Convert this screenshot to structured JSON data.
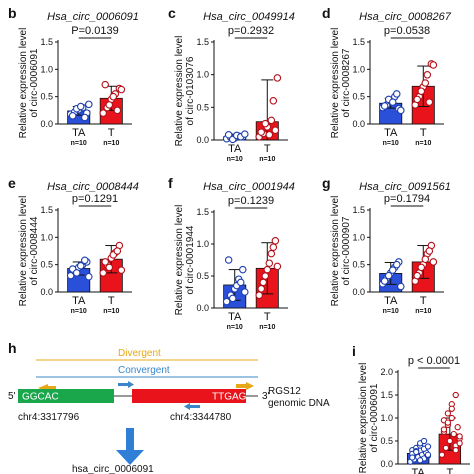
{
  "colors": {
    "ta": "#2a4fd8",
    "t": "#e8131b",
    "divergent": "#e6a817",
    "convergent": "#3a86c8",
    "primer_div": "#e6a817",
    "primer_conv": "#3a86c8",
    "exon_left": "#1aa64b",
    "exon_right": "#e8131b",
    "arrow": "#2f7fd6",
    "dot_ta": "#1d3fb0",
    "dot_t": "#b5101a"
  },
  "panel_h": {
    "label": "h",
    "divergent": "Divergent",
    "convergent": "Convergent",
    "left_seq": "GGCAC",
    "right_seq": "TTGAG",
    "five_prime": "5'",
    "three_prime": "3'",
    "gene_line1": "RGS12",
    "gene_line2": "genomic DNA",
    "coord_left": "chr4:3317796",
    "coord_right": "chr4:3344780",
    "circ_name": "hsa_circ_0006091"
  },
  "chart_data": [
    {
      "panel": "b",
      "type": "bar",
      "title": "Hsa_circ_0006091",
      "ylabel": [
        "Relative expression level",
        "of circ-0006091"
      ],
      "categories": [
        "TA",
        "T"
      ],
      "n_labels": [
        "n=10",
        "n=10"
      ],
      "pvalue": "P=0.0139",
      "ylim": [
        0,
        1.5
      ],
      "yticks": [
        "0.0",
        "0.5",
        "1.0",
        "1.5"
      ],
      "values": [
        0.24,
        0.47
      ],
      "errors": [
        0.08,
        0.22
      ],
      "points": [
        [
          0.18,
          0.22,
          0.26,
          0.3,
          0.2,
          0.15,
          0.28,
          0.32,
          0.12,
          0.36
        ],
        [
          0.2,
          0.3,
          0.45,
          0.55,
          0.65,
          0.72,
          0.35,
          0.5,
          0.25,
          0.63
        ]
      ]
    },
    {
      "panel": "c",
      "type": "bar",
      "title": "Hsa_circ_0049914",
      "ylabel": [
        "Relative expression level",
        "of circ-0103076"
      ],
      "categories": [
        "TA",
        "T"
      ],
      "n_labels": [
        "n=10",
        "n=10"
      ],
      "pvalue": "p=0.2932",
      "ylim": [
        0,
        1.5
      ],
      "yticks": [
        "0.0",
        "0.5",
        "1.0",
        "1.5"
      ],
      "values": [
        0.05,
        0.28
      ],
      "errors": [
        0.04,
        0.64
      ],
      "points": [
        [
          0.02,
          0.04,
          0.03,
          0.06,
          0.05,
          0.08,
          0.01,
          0.07,
          0.05,
          0.09
        ],
        [
          0.05,
          0.1,
          0.2,
          0.3,
          0.15,
          0.12,
          0.25,
          0.08,
          0.6,
          0.95
        ]
      ]
    },
    {
      "panel": "d",
      "type": "bar",
      "title": "Hsa_circ_0008267",
      "ylabel": [
        "Relative expression level",
        "of circ-0008267"
      ],
      "categories": [
        "TA",
        "T"
      ],
      "n_labels": [
        "n=10",
        "n=10"
      ],
      "pvalue": "p=0.0538",
      "ylim": [
        0,
        1.5
      ],
      "yticks": [
        "0.0",
        "0.5",
        "1.0",
        "1.5"
      ],
      "values": [
        0.38,
        0.69
      ],
      "errors": [
        0.09,
        0.37
      ],
      "points": [
        [
          0.3,
          0.35,
          0.42,
          0.5,
          0.28,
          0.33,
          0.45,
          0.4,
          0.55,
          0.25
        ],
        [
          0.35,
          0.5,
          0.68,
          0.9,
          1.1,
          0.45,
          0.6,
          0.75,
          0.4,
          1.08
        ]
      ]
    },
    {
      "panel": "e",
      "type": "bar",
      "title": "Hsa_circ_0008444",
      "ylabel": [
        "Relative expression level",
        "of circ-0008444"
      ],
      "categories": [
        "TA",
        "T"
      ],
      "n_labels": [
        "n=10",
        "n=10"
      ],
      "pvalue": "p=0.1291",
      "ylim": [
        0,
        1.5
      ],
      "yticks": [
        "0.0",
        "0.5",
        "1.0",
        "1.5"
      ],
      "values": [
        0.43,
        0.6
      ],
      "errors": [
        0.12,
        0.25
      ],
      "points": [
        [
          0.3,
          0.38,
          0.45,
          0.5,
          0.55,
          0.42,
          0.35,
          0.48,
          0.58,
          0.28
        ],
        [
          0.35,
          0.5,
          0.62,
          0.72,
          0.85,
          0.55,
          0.45,
          0.68,
          0.75,
          0.4
        ]
      ]
    },
    {
      "panel": "f",
      "type": "bar",
      "title": "Hsa_circ_0001944",
      "ylabel": [
        "Relative expression level",
        "of circ-0001944"
      ],
      "categories": [
        "TA",
        "T"
      ],
      "n_labels": [
        "n=10",
        "n=10"
      ],
      "pvalue": "p=0.1239",
      "ylim": [
        0,
        1.5
      ],
      "yticks": [
        "0.0",
        "0.5",
        "1.0",
        "1.5"
      ],
      "values": [
        0.36,
        0.62
      ],
      "errors": [
        0.24,
        0.4
      ],
      "points": [
        [
          0.1,
          0.2,
          0.3,
          0.45,
          0.6,
          0.75,
          0.15,
          0.35,
          0.4,
          0.25
        ],
        [
          0.2,
          0.4,
          0.6,
          0.85,
          1.05,
          0.3,
          0.5,
          0.7,
          0.95,
          0.65
        ]
      ]
    },
    {
      "panel": "g",
      "type": "bar",
      "title": "Hsa_circ_0091561",
      "ylabel": [
        "Relative expression level",
        "of circ-0000907"
      ],
      "categories": [
        "TA",
        "T"
      ],
      "n_labels": [
        "n=10",
        "n=10"
      ],
      "pvalue": "p=0.1794",
      "ylim": [
        0,
        1.5
      ],
      "yticks": [
        "0.0",
        "0.5",
        "1.0",
        "1.5"
      ],
      "values": [
        0.34,
        0.55
      ],
      "errors": [
        0.2,
        0.3
      ],
      "points": [
        [
          0.15,
          0.25,
          0.35,
          0.45,
          0.55,
          0.2,
          0.3,
          0.4,
          0.5,
          0.1
        ],
        [
          0.2,
          0.35,
          0.5,
          0.7,
          0.85,
          0.3,
          0.45,
          0.6,
          0.75,
          0.55
        ]
      ]
    },
    {
      "panel": "i",
      "type": "bar",
      "title": "",
      "ylabel": [
        "Relative expression level",
        "of circ-0006091"
      ],
      "categories": [
        "TA",
        "T"
      ],
      "n_labels": [
        "",
        ""
      ],
      "pvalue": "p < 0.0001",
      "ylim": [
        0,
        2.0
      ],
      "yticks": [
        "0.0",
        "0.5",
        "1.0",
        "1.5",
        "2.0"
      ],
      "values": [
        0.23,
        0.65
      ],
      "errors": [
        0.12,
        0.35
      ],
      "points": [
        [
          0.05,
          0.1,
          0.15,
          0.2,
          0.25,
          0.3,
          0.35,
          0.4,
          0.12,
          0.18,
          0.22,
          0.28,
          0.08,
          0.33,
          0.38,
          0.14,
          0.26,
          0.45,
          0.5,
          0.2
        ],
        [
          0.2,
          0.35,
          0.5,
          0.65,
          0.8,
          0.95,
          1.1,
          1.3,
          0.4,
          0.55,
          0.7,
          0.85,
          1.0,
          0.3,
          0.6,
          0.75,
          0.9,
          1.2,
          1.5,
          0.45
        ]
      ]
    }
  ]
}
